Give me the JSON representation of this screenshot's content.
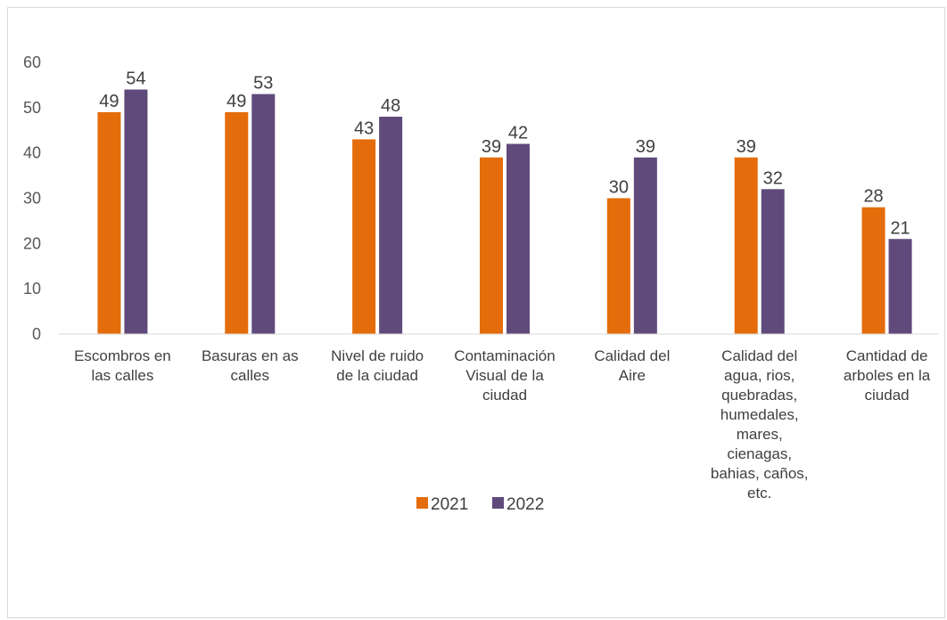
{
  "chart_data": {
    "type": "bar",
    "categories": [
      [
        "Escombros en",
        "las calles"
      ],
      [
        "Basuras en as",
        "calles"
      ],
      [
        "Nivel de ruido",
        "de la ciudad"
      ],
      [
        "Contaminación",
        "Visual de la",
        "ciudad"
      ],
      [
        "Calidad del",
        "Aire"
      ],
      [
        "Calidad del",
        "agua, rios,",
        "quebradas,",
        "humedales,",
        "mares,",
        "cienagas,",
        "bahias, caños,",
        "etc."
      ],
      [
        "Cantidad de",
        "arboles en la",
        "ciudad"
      ]
    ],
    "series": [
      {
        "name": "2021",
        "color": "#E46C0A",
        "values": [
          49,
          49,
          43,
          39,
          30,
          39,
          28
        ]
      },
      {
        "name": "2022",
        "color": "#604A7B",
        "values": [
          54,
          53,
          48,
          42,
          39,
          32,
          21
        ]
      }
    ],
    "yticks": [
      0,
      10,
      20,
      30,
      40,
      50,
      60
    ],
    "ylim": [
      0,
      60
    ],
    "grid": false,
    "legend_position": "bottom-center"
  }
}
